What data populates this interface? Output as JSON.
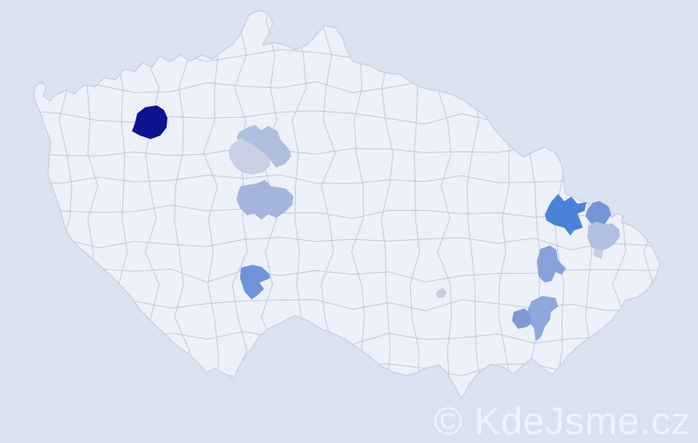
{
  "watermark": {
    "text": "© KdeJsme.cz",
    "color": "#eef2fa"
  },
  "map": {
    "background_color": "#dae1ef",
    "land_color": "#ecf0f8",
    "border_color": "#c6cce2",
    "districts": [
      {
        "id": "district-1",
        "shade": "darkest",
        "color": "#0d128f"
      },
      {
        "id": "district-2",
        "shade": "medium-light",
        "color": "#b0bfe0"
      },
      {
        "id": "district-3",
        "shade": "lightest",
        "color": "#c9cfe4"
      },
      {
        "id": "district-4",
        "shade": "medium",
        "color": "#a3b5dc"
      },
      {
        "id": "district-5",
        "shade": "strong",
        "color": "#6e93d8"
      },
      {
        "id": "district-6",
        "shade": "strong",
        "color": "#4b81d6"
      },
      {
        "id": "district-7",
        "shade": "strong",
        "color": "#7495d6"
      },
      {
        "id": "district-8",
        "shade": "medium-light",
        "color": "#b1bfe0"
      },
      {
        "id": "district-9",
        "shade": "lightest",
        "color": "#c6cde6"
      },
      {
        "id": "district-10",
        "shade": "medium",
        "color": "#87a2da"
      },
      {
        "id": "district-11",
        "shade": "medium",
        "color": "#8ea7dc"
      },
      {
        "id": "district-12",
        "shade": "medium",
        "color": "#7e9ad5"
      },
      {
        "id": "district-13",
        "shade": "lightest",
        "color": "#c5cce5"
      }
    ]
  }
}
